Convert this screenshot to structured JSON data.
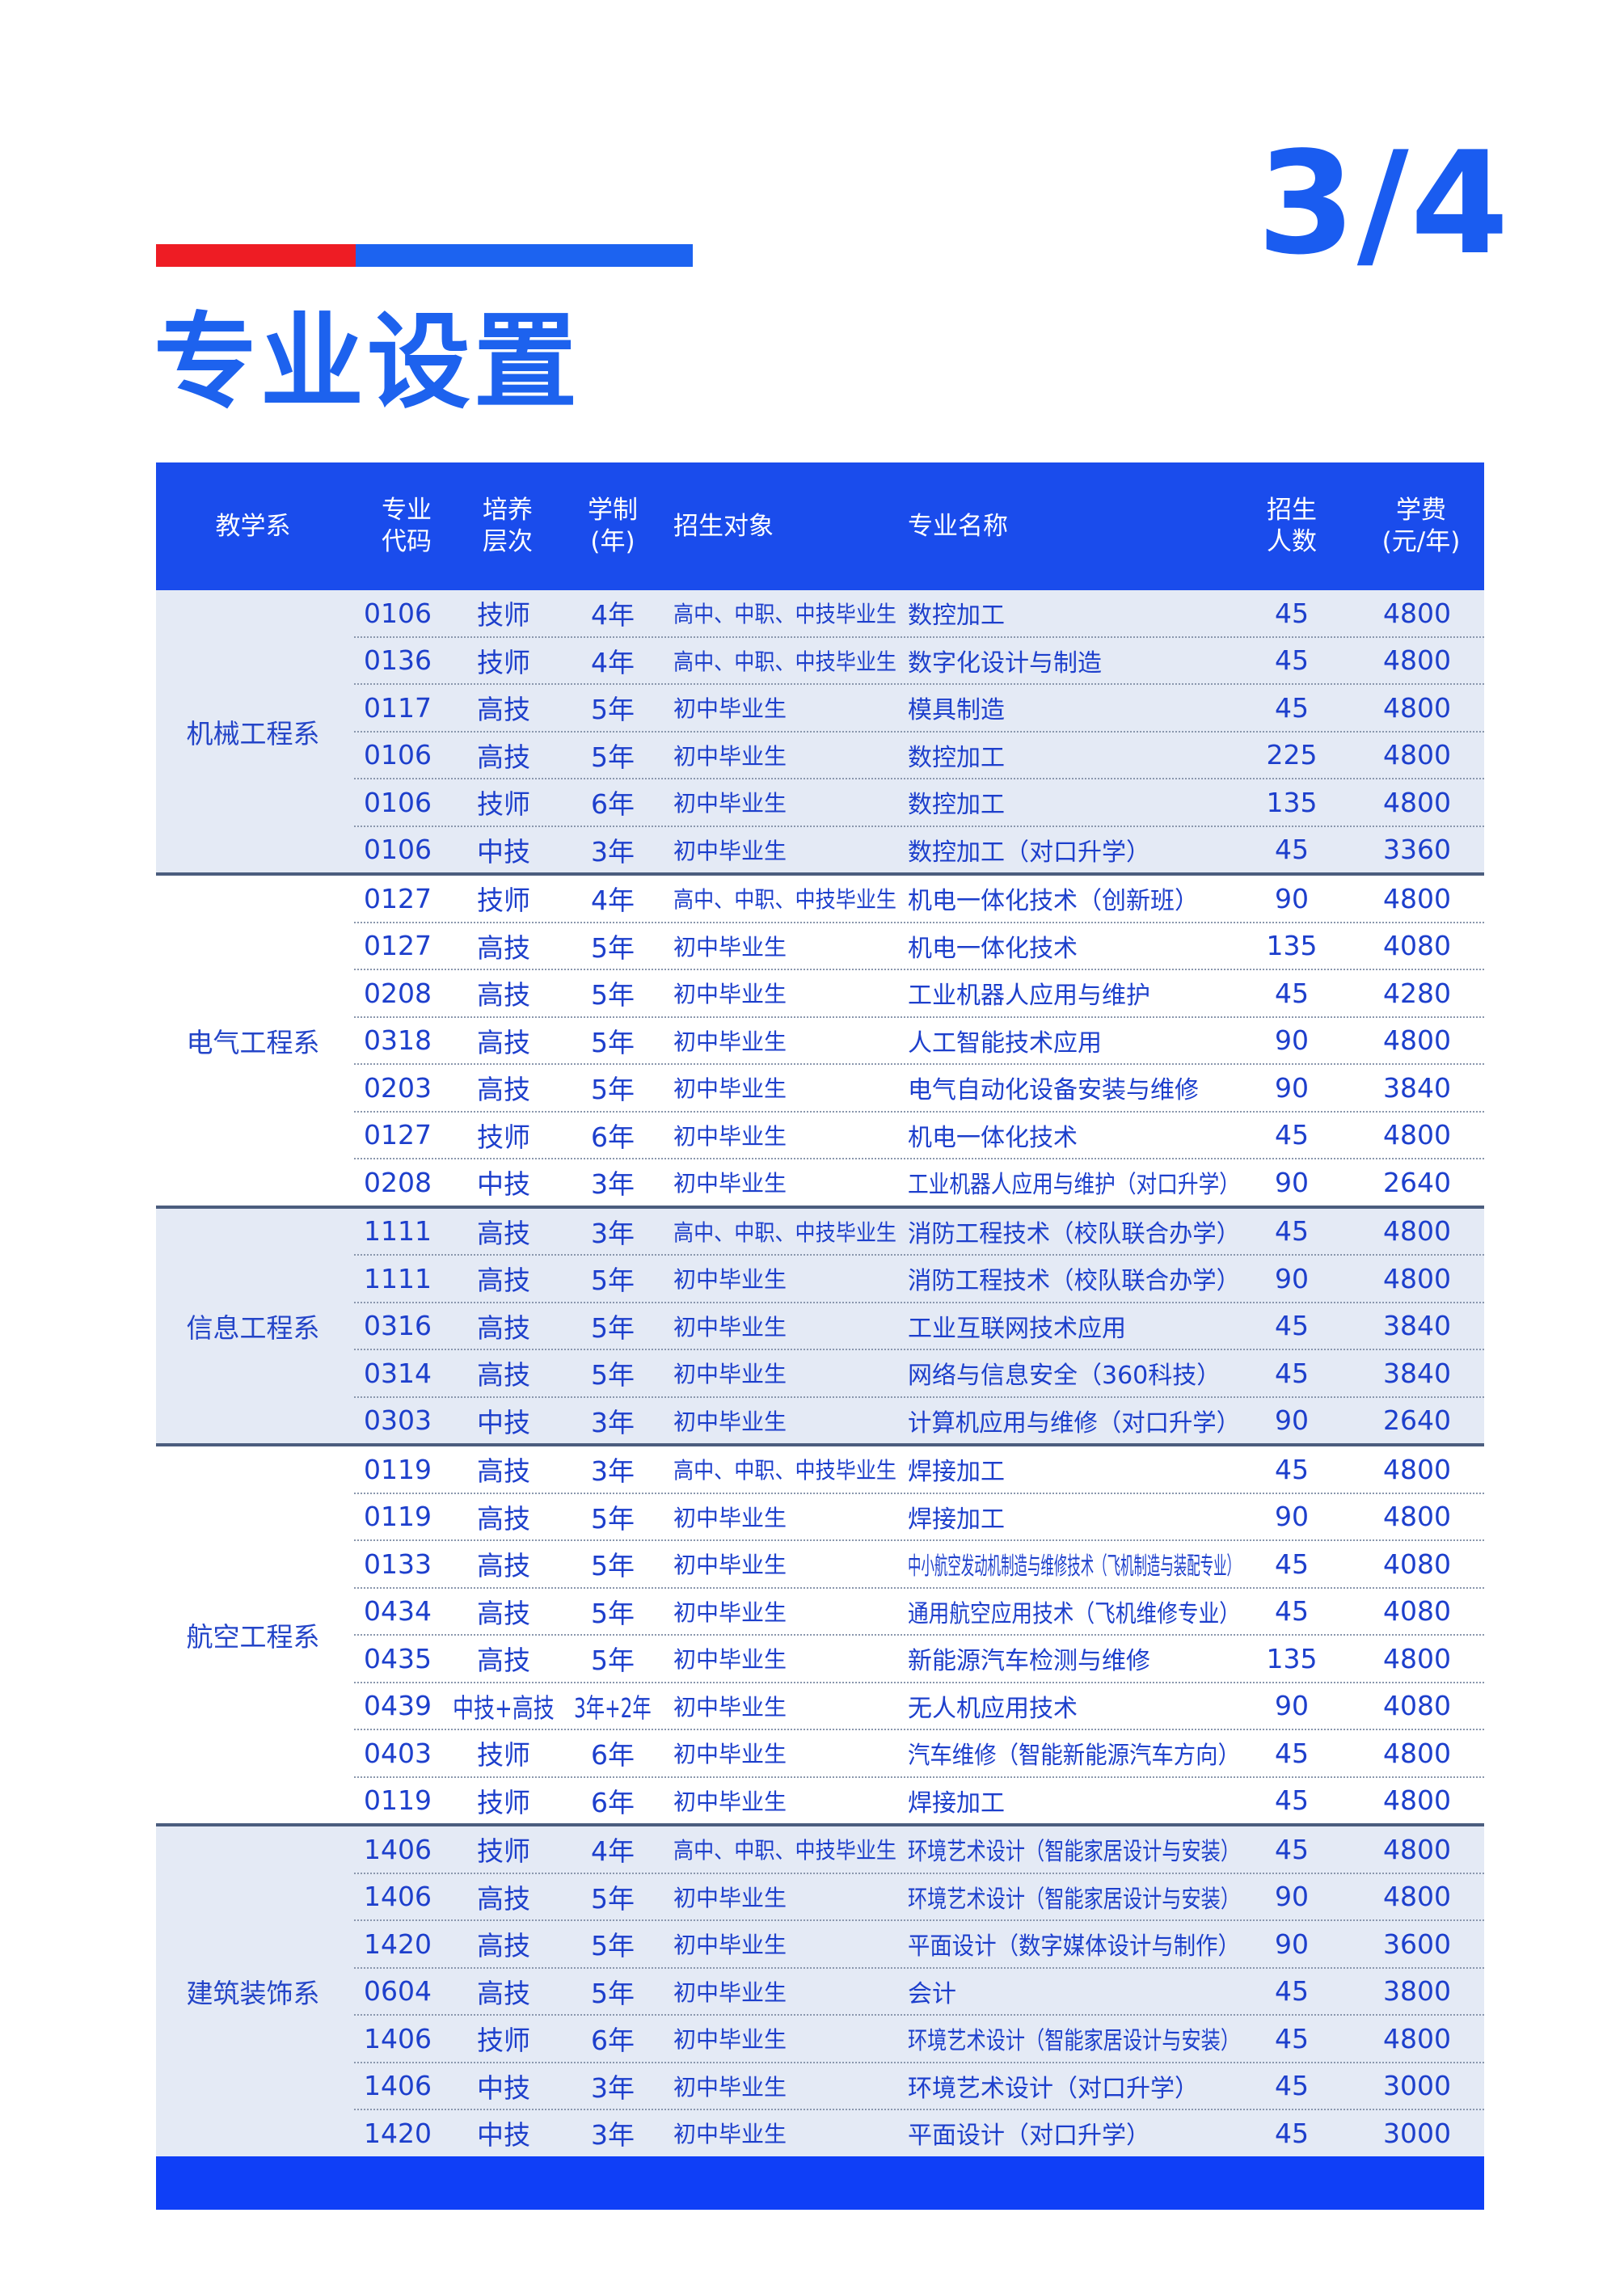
{
  "page_number": "3/4",
  "title": "专业设置",
  "colors": {
    "accent_red": "#ee1c24",
    "accent_blue": "#1c63f0",
    "header_bg": "#1a4cec",
    "text_blue": "#1d3fcc",
    "shade": "#e4eaf5"
  },
  "headers": [
    "教学系",
    "专业\n代码",
    "培养\n层次",
    "学制\n(年)",
    "招生对象",
    "专业名称",
    "招生\n人数",
    "学费\n(元/年)"
  ],
  "groups": [
    {
      "dept": "机械工程系",
      "rows": [
        [
          "0106",
          "技师",
          "4年",
          "高中、中职、中技毕业生",
          "数控加工",
          "45",
          "4800"
        ],
        [
          "0136",
          "技师",
          "4年",
          "高中、中职、中技毕业生",
          "数字化设计与制造",
          "45",
          "4800"
        ],
        [
          "0117",
          "高技",
          "5年",
          "初中毕业生",
          "模具制造",
          "45",
          "4800"
        ],
        [
          "0106",
          "高技",
          "5年",
          "初中毕业生",
          "数控加工",
          "225",
          "4800"
        ],
        [
          "0106",
          "技师",
          "6年",
          "初中毕业生",
          "数控加工",
          "135",
          "4800"
        ],
        [
          "0106",
          "中技",
          "3年",
          "初中毕业生",
          "数控加工（对口升学）",
          "45",
          "3360"
        ]
      ]
    },
    {
      "dept": "电气工程系",
      "rows": [
        [
          "0127",
          "技师",
          "4年",
          "高中、中职、中技毕业生",
          "机电一体化技术（创新班）",
          "90",
          "4800"
        ],
        [
          "0127",
          "高技",
          "5年",
          "初中毕业生",
          "机电一体化技术",
          "135",
          "4080"
        ],
        [
          "0208",
          "高技",
          "5年",
          "初中毕业生",
          "工业机器人应用与维护",
          "45",
          "4280"
        ],
        [
          "0318",
          "高技",
          "5年",
          "初中毕业生",
          "人工智能技术应用",
          "90",
          "4800"
        ],
        [
          "0203",
          "高技",
          "5年",
          "初中毕业生",
          "电气自动化设备安装与维修",
          "90",
          "3840"
        ],
        [
          "0127",
          "技师",
          "6年",
          "初中毕业生",
          "机电一体化技术",
          "45",
          "4800"
        ],
        [
          "0208",
          "中技",
          "3年",
          "初中毕业生",
          "工业机器人应用与维护（对口升学）",
          "90",
          "2640"
        ]
      ]
    },
    {
      "dept": "信息工程系",
      "rows": [
        [
          "1111",
          "高技",
          "3年",
          "高中、中职、中技毕业生",
          "消防工程技术（校队联合办学）",
          "45",
          "4800"
        ],
        [
          "1111",
          "高技",
          "5年",
          "初中毕业生",
          "消防工程技术（校队联合办学）",
          "90",
          "4800"
        ],
        [
          "0316",
          "高技",
          "5年",
          "初中毕业生",
          "工业互联网技术应用",
          "45",
          "3840"
        ],
        [
          "0314",
          "高技",
          "5年",
          "初中毕业生",
          "网络与信息安全（360科技）",
          "45",
          "3840"
        ],
        [
          "0303",
          "中技",
          "3年",
          "初中毕业生",
          "计算机应用与维修（对口升学）",
          "90",
          "2640"
        ]
      ]
    },
    {
      "dept": "航空工程系",
      "rows": [
        [
          "0119",
          "高技",
          "3年",
          "高中、中职、中技毕业生",
          "焊接加工",
          "45",
          "4800"
        ],
        [
          "0119",
          "高技",
          "5年",
          "初中毕业生",
          "焊接加工",
          "90",
          "4800"
        ],
        [
          "0133",
          "高技",
          "5年",
          "初中毕业生",
          "中小航空发动机制造与维修技术（飞机制造与装配专业）",
          "45",
          "4080"
        ],
        [
          "0434",
          "高技",
          "5年",
          "初中毕业生",
          "通用航空应用技术（飞机维修专业）",
          "45",
          "4080"
        ],
        [
          "0435",
          "高技",
          "5年",
          "初中毕业生",
          "新能源汽车检测与维修",
          "135",
          "4800"
        ],
        [
          "0439",
          "中技+高技",
          "3年+2年",
          "初中毕业生",
          "无人机应用技术",
          "90",
          "4080"
        ],
        [
          "0403",
          "技师",
          "6年",
          "初中毕业生",
          "汽车维修（智能新能源汽车方向）",
          "45",
          "4800"
        ],
        [
          "0119",
          "技师",
          "6年",
          "初中毕业生",
          "焊接加工",
          "45",
          "4800"
        ]
      ]
    },
    {
      "dept": "建筑装饰系",
      "rows": [
        [
          "1406",
          "技师",
          "4年",
          "高中、中职、中技毕业生",
          "环境艺术设计（智能家居设计与安装）",
          "45",
          "4800"
        ],
        [
          "1406",
          "高技",
          "5年",
          "初中毕业生",
          "环境艺术设计（智能家居设计与安装）",
          "90",
          "4800"
        ],
        [
          "1420",
          "高技",
          "5年",
          "初中毕业生",
          "平面设计（数字媒体设计与制作）",
          "90",
          "3600"
        ],
        [
          "0604",
          "高技",
          "5年",
          "初中毕业生",
          "会计",
          "45",
          "3800"
        ],
        [
          "1406",
          "技师",
          "6年",
          "初中毕业生",
          "环境艺术设计（智能家居设计与安装）",
          "45",
          "4800"
        ],
        [
          "1406",
          "中技",
          "3年",
          "初中毕业生",
          "环境艺术设计（对口升学）",
          "45",
          "3000"
        ],
        [
          "1420",
          "中技",
          "3年",
          "初中毕业生",
          "平面设计（对口升学）",
          "45",
          "3000"
        ]
      ]
    }
  ]
}
